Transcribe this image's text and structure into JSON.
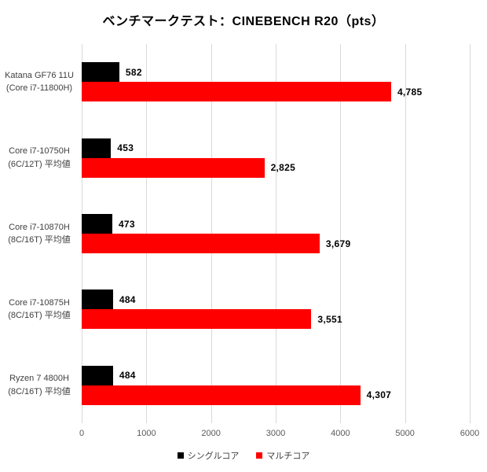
{
  "title": "ベンチマークテスト：CINEBENCH R20（pts）",
  "chart_data": {
    "type": "bar",
    "orientation": "horizontal",
    "title": "ベンチマークテスト：CINEBENCH R20（pts）",
    "xlim": [
      0,
      6000
    ],
    "x_ticks": [
      "0",
      "1000",
      "2000",
      "3000",
      "4000",
      "5000",
      "6000"
    ],
    "grid": true,
    "legend_position": "bottom",
    "categories": [
      {
        "line1": "Katana GF76 11U",
        "line2": "(Core i7-11800H)"
      },
      {
        "line1": "Core i7-10750H",
        "line2": "(6C/12T) 平均値"
      },
      {
        "line1": "Core i7-10870H",
        "line2": "(8C/16T) 平均値"
      },
      {
        "line1": "Core i7-10875H",
        "line2": "(8C/16T) 平均値"
      },
      {
        "line1": "Ryzen 7 4800H",
        "line2": "(8C/16T) 平均値"
      }
    ],
    "series": [
      {
        "name": "シングルコア",
        "color": "#000000",
        "values": [
          582,
          453,
          473,
          484,
          484
        ],
        "labels": [
          "582",
          "453",
          "473",
          "484",
          "484"
        ]
      },
      {
        "name": "マルチコア",
        "color": "#ff0000",
        "values": [
          4785,
          2825,
          3679,
          3551,
          4307
        ],
        "labels": [
          "4,785",
          "2,825",
          "3,679",
          "3,551",
          "4,307"
        ]
      }
    ]
  },
  "legend": {
    "items": [
      {
        "label": "シングルコア",
        "color": "#000000"
      },
      {
        "label": "マルチコア",
        "color": "#ff0000"
      }
    ]
  },
  "colors": {
    "background": "#ffffff",
    "gridline": "#d9d9d9",
    "tick_label": "#595959",
    "category_label": "#404040",
    "value_label": "#000000"
  }
}
